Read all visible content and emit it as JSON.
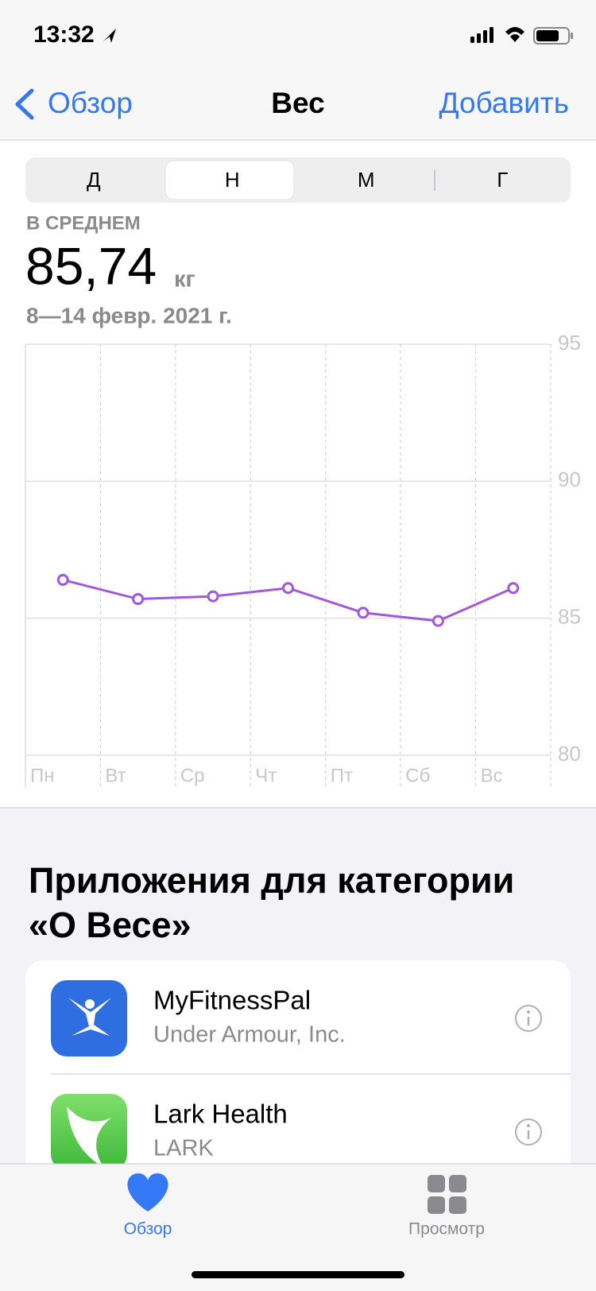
{
  "status": {
    "time": "13:32"
  },
  "nav": {
    "back": "Обзор",
    "title": "Вес",
    "action": "Добавить"
  },
  "segments": [
    "Д",
    "Н",
    "М",
    "Г"
  ],
  "summary": {
    "label": "В СРЕДНЕМ",
    "value": "85,74",
    "unit": "кг",
    "range": "8—14 февр. 2021 г."
  },
  "chart_data": {
    "type": "line",
    "categories": [
      "Пн",
      "Вт",
      "Ср",
      "Чт",
      "Пт",
      "Сб",
      "Вс"
    ],
    "series": [
      {
        "color": "#a259d9",
        "values": [
          86.4,
          85.7,
          85.8,
          86.1,
          85.2,
          84.9,
          86.1
        ]
      }
    ],
    "ylim": [
      80,
      95
    ],
    "yticks": [
      80,
      85,
      90,
      95
    ],
    "grid": true
  },
  "apps": {
    "title_lines": [
      "Приложения для категории",
      "«О Весе»"
    ],
    "items": [
      {
        "name": "MyFitnessPal",
        "developer": "Under Armour, Inc."
      },
      {
        "name": "Lark Health",
        "developer": "LARK"
      }
    ]
  },
  "tabs": [
    "Обзор",
    "Просмотр"
  ]
}
